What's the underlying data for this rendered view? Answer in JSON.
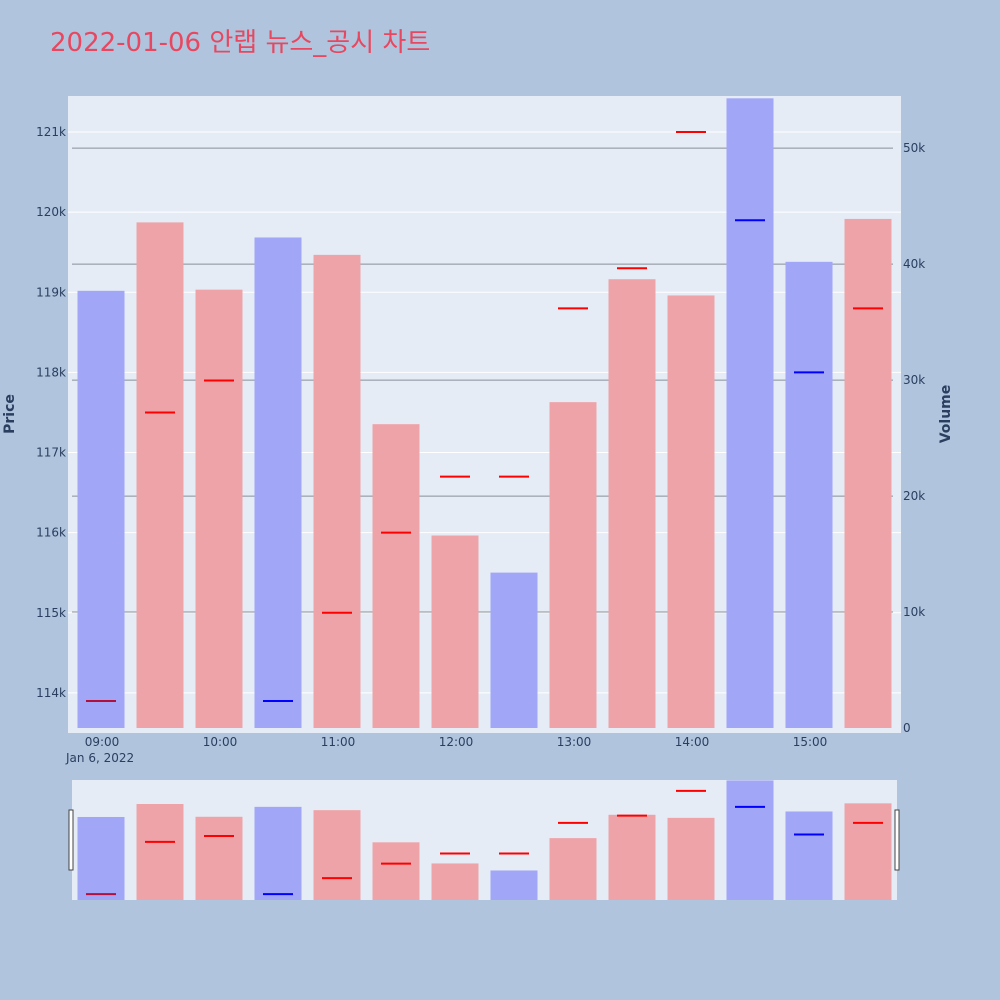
{
  "title": "2022-01-06 안랩 뉴스_공시 차트",
  "colors": {
    "background": "#b0c4de",
    "plot_bg": "#e5ecf6",
    "title": "#e8475f",
    "up_bar": "#eea3a8",
    "down_bar": "#a1a6f6",
    "up_price": "#ff0000",
    "down_price": "#0000ff"
  },
  "chart_data": {
    "type": "bar",
    "title": "2022-01-06 안랩 뉴스_공시 차트",
    "x_date_label": "Jan 6, 2022",
    "x_ticks": [
      "09:00",
      "10:00",
      "11:00",
      "12:00",
      "13:00",
      "14:00",
      "15:00"
    ],
    "y_price_label": "Price",
    "y_volume_label": "Volume",
    "price_ticks": [
      "114k",
      "115k",
      "116k",
      "117k",
      "118k",
      "119k",
      "120k",
      "121k"
    ],
    "volume_ticks": [
      "0",
      "10k",
      "20k",
      "30k",
      "40k",
      "50k"
    ],
    "price_range": [
      113500,
      121450
    ],
    "volume_range": [
      0,
      54500
    ],
    "grid": true,
    "categories": [
      "09:00",
      "09:30",
      "10:00",
      "10:30",
      "11:00",
      "11:30",
      "12:00",
      "12:30",
      "13:00",
      "13:30",
      "14:00",
      "14:30",
      "15:00",
      "15:30"
    ],
    "series": [
      {
        "type": "bar",
        "axis": "volume",
        "values": [
          37700,
          43600,
          37800,
          42300,
          40800,
          26200,
          16600,
          13400,
          28100,
          38700,
          37300,
          54300,
          40200,
          43900
        ],
        "direction": [
          "down",
          "up",
          "up",
          "down",
          "up",
          "up",
          "up",
          "down",
          "up",
          "up",
          "up",
          "down",
          "down",
          "up"
        ]
      },
      {
        "type": "price_marker",
        "axis": "price",
        "values": [
          113900,
          117500,
          117900,
          113900,
          115000,
          116000,
          116700,
          116700,
          118800,
          119300,
          121000,
          119900,
          118000,
          118800
        ],
        "direction": [
          "mixed",
          "up",
          "up",
          "down",
          "up",
          "up",
          "up",
          "up",
          "up",
          "up",
          "up",
          "down",
          "down",
          "up"
        ]
      }
    ]
  }
}
